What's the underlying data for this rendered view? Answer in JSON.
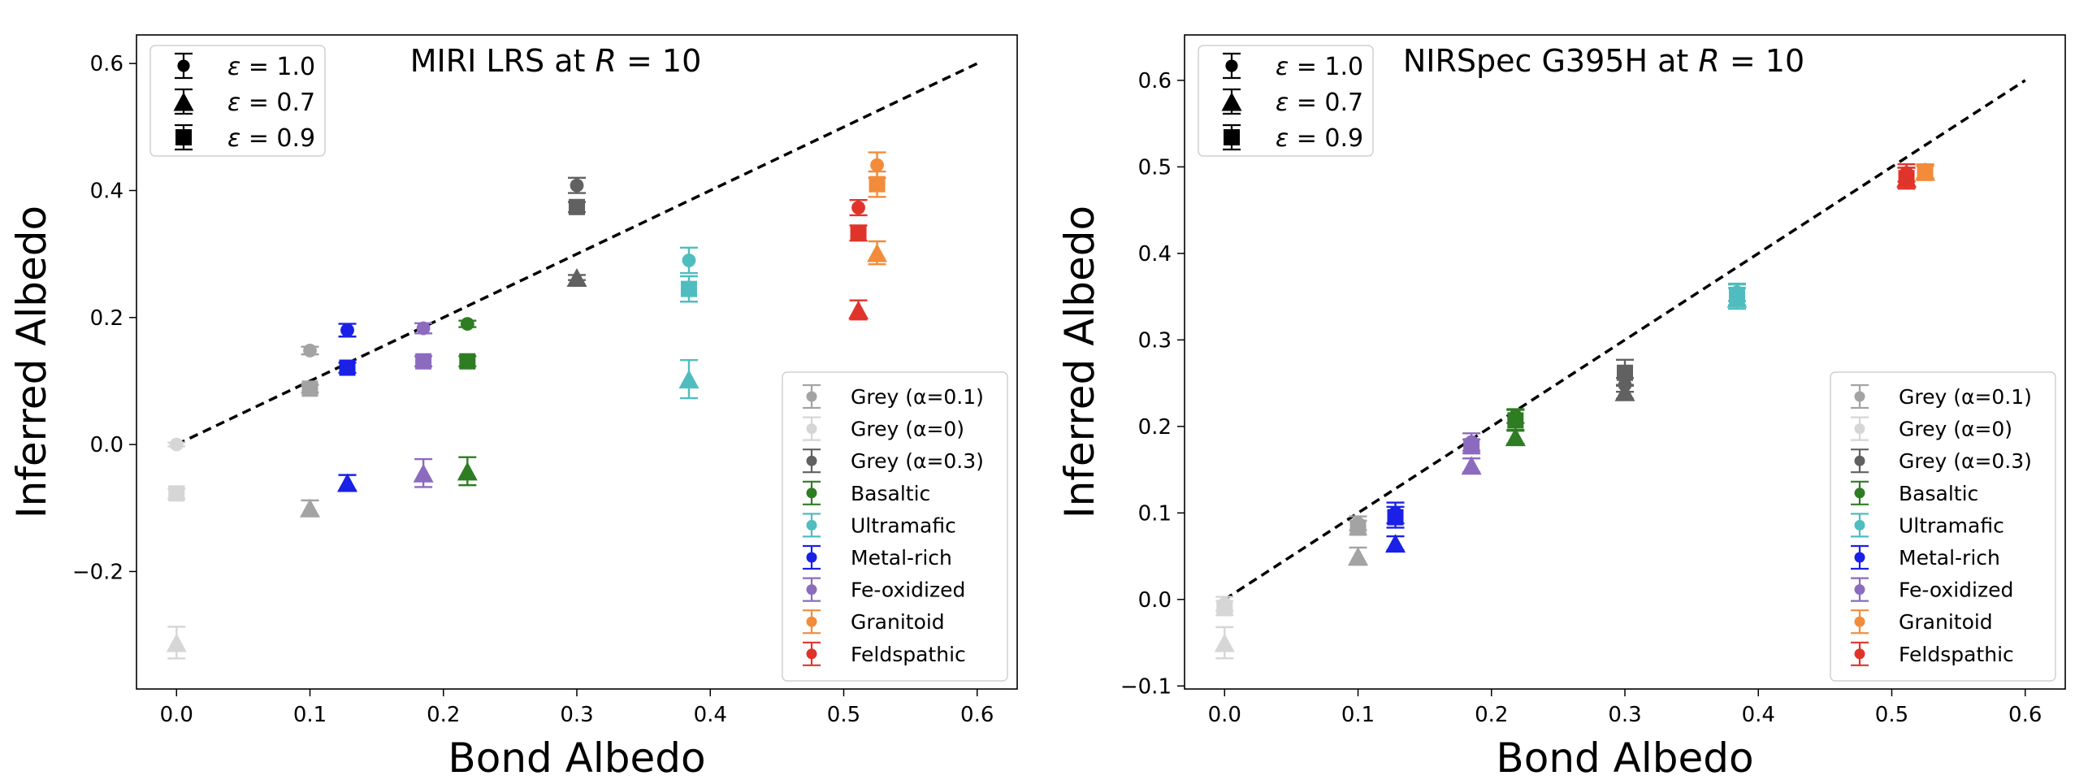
{
  "chart_data": [
    {
      "type": "scatter",
      "title_prefix": "MIRI LRS at ",
      "title_var": "R",
      "title_suffix": " = 10",
      "xlabel": "Bond Albedo",
      "ylabel": "Inferred Albedo",
      "xlim": [
        -0.03,
        0.63
      ],
      "ylim": [
        -0.385,
        0.645
      ],
      "xticks": [
        0.0,
        0.1,
        0.2,
        0.3,
        0.4,
        0.5,
        0.6
      ],
      "xtick_labels": [
        "0.0",
        "0.1",
        "0.2",
        "0.3",
        "0.4",
        "0.5",
        "0.6"
      ],
      "yticks": [
        -0.2,
        0.0,
        0.2,
        0.4,
        0.6
      ],
      "ytick_labels": [
        "−0.2",
        "0.0",
        "0.2",
        "0.4",
        "0.6"
      ],
      "reference_line": {
        "x": [
          0.0,
          0.6
        ],
        "y": [
          0.0,
          0.6
        ],
        "style": "dashed"
      },
      "marker_legend": [
        {
          "symbol": "ε",
          "text": " = 1.0",
          "marker": "circle"
        },
        {
          "symbol": "ε",
          "text": " = 0.7",
          "marker": "triangle"
        },
        {
          "symbol": "ε",
          "text": " = 0.9",
          "marker": "square"
        }
      ],
      "series": [
        {
          "name": "Grey (α=0.1)",
          "color": "#a3a3a3",
          "points": [
            {
              "marker": "circle",
              "x": 0.1,
              "y": 0.148,
              "err": 0.006
            },
            {
              "marker": "triangle",
              "x": 0.1,
              "y": -0.1,
              "err": 0.012
            },
            {
              "marker": "square",
              "x": 0.1,
              "y": 0.088,
              "err": 0.006
            }
          ]
        },
        {
          "name": "Grey (α=0)",
          "color": "#d6d6d6",
          "points": [
            {
              "marker": "circle",
              "x": 0.0,
              "y": 0.0,
              "err": 0.003
            },
            {
              "marker": "triangle",
              "x": 0.0,
              "y": -0.312,
              "err": 0.025
            },
            {
              "marker": "square",
              "x": 0.0,
              "y": -0.077,
              "err": 0.008
            }
          ]
        },
        {
          "name": "Grey (α=0.3)",
          "color": "#616161",
          "points": [
            {
              "marker": "circle",
              "x": 0.3,
              "y": 0.408,
              "err": 0.012
            },
            {
              "marker": "triangle",
              "x": 0.3,
              "y": 0.263,
              "err": 0.004
            },
            {
              "marker": "square",
              "x": 0.3,
              "y": 0.374,
              "err": 0.008
            }
          ]
        },
        {
          "name": "Basaltic",
          "color": "#2e7d23",
          "points": [
            {
              "marker": "circle",
              "x": 0.218,
              "y": 0.19,
              "err": 0.005
            },
            {
              "marker": "triangle",
              "x": 0.218,
              "y": -0.042,
              "err": 0.022
            },
            {
              "marker": "square",
              "x": 0.218,
              "y": 0.131,
              "err": 0.008
            }
          ]
        },
        {
          "name": "Ultramafic",
          "color": "#4fbdbf",
          "points": [
            {
              "marker": "circle",
              "x": 0.384,
              "y": 0.29,
              "err": 0.02
            },
            {
              "marker": "triangle",
              "x": 0.384,
              "y": 0.103,
              "err": 0.03
            },
            {
              "marker": "square",
              "x": 0.384,
              "y": 0.245,
              "err": 0.02
            }
          ]
        },
        {
          "name": "Metal-rich",
          "color": "#1a20e6",
          "points": [
            {
              "marker": "circle",
              "x": 0.128,
              "y": 0.18,
              "err": 0.01
            },
            {
              "marker": "triangle",
              "x": 0.128,
              "y": -0.06,
              "err": 0.012
            },
            {
              "marker": "square",
              "x": 0.128,
              "y": 0.121,
              "err": 0.008
            }
          ]
        },
        {
          "name": "Fe-oxidized",
          "color": "#8c6bbf",
          "points": [
            {
              "marker": "circle",
              "x": 0.185,
              "y": 0.183,
              "err": 0.008
            },
            {
              "marker": "triangle",
              "x": 0.185,
              "y": -0.045,
              "err": 0.022
            },
            {
              "marker": "square",
              "x": 0.185,
              "y": 0.131,
              "err": 0.008
            }
          ]
        },
        {
          "name": "Granitoid",
          "color": "#f28c3a",
          "points": [
            {
              "marker": "circle",
              "x": 0.525,
              "y": 0.44,
              "err": 0.02
            },
            {
              "marker": "triangle",
              "x": 0.525,
              "y": 0.302,
              "err": 0.018
            },
            {
              "marker": "square",
              "x": 0.525,
              "y": 0.41,
              "err": 0.02
            }
          ]
        },
        {
          "name": "Feldspathic",
          "color": "#e0342b",
          "points": [
            {
              "marker": "circle",
              "x": 0.511,
              "y": 0.373,
              "err": 0.012
            },
            {
              "marker": "triangle",
              "x": 0.511,
              "y": 0.212,
              "err": 0.015
            },
            {
              "marker": "square",
              "x": 0.511,
              "y": 0.333,
              "err": 0.012
            }
          ]
        }
      ]
    },
    {
      "type": "scatter",
      "title_prefix": "NIRSpec G395H at ",
      "title_var": "R",
      "title_suffix": " = 10",
      "xlabel": "Bond Albedo",
      "ylabel": "Inferred Albedo",
      "xlim": [
        -0.03,
        0.63
      ],
      "ylim": [
        -0.1035,
        0.6525
      ],
      "xticks": [
        0.0,
        0.1,
        0.2,
        0.3,
        0.4,
        0.5,
        0.6
      ],
      "xtick_labels": [
        "0.0",
        "0.1",
        "0.2",
        "0.3",
        "0.4",
        "0.5",
        "0.6"
      ],
      "yticks": [
        -0.1,
        0.0,
        0.1,
        0.2,
        0.3,
        0.4,
        0.5,
        0.6
      ],
      "ytick_labels": [
        "−0.1",
        "0.0",
        "0.1",
        "0.2",
        "0.3",
        "0.4",
        "0.5",
        "0.6"
      ],
      "reference_line": {
        "x": [
          0.0,
          0.6
        ],
        "y": [
          0.0,
          0.6
        ],
        "style": "dashed"
      },
      "marker_legend": [
        {
          "symbol": "ε",
          "text": " = 1.0",
          "marker": "circle"
        },
        {
          "symbol": "ε",
          "text": " = 0.7",
          "marker": "triangle"
        },
        {
          "symbol": "ε",
          "text": " = 0.9",
          "marker": "square"
        }
      ],
      "series": [
        {
          "name": "Grey (α=0.1)",
          "color": "#a3a3a3",
          "points": [
            {
              "marker": "circle",
              "x": 0.1,
              "y": 0.088,
              "err": 0.008
            },
            {
              "marker": "triangle",
              "x": 0.1,
              "y": 0.05,
              "err": 0.01
            },
            {
              "marker": "square",
              "x": 0.1,
              "y": 0.083,
              "err": 0.008
            }
          ]
        },
        {
          "name": "Grey (α=0)",
          "color": "#d6d6d6",
          "points": [
            {
              "marker": "circle",
              "x": 0.0,
              "y": -0.005,
              "err": 0.008
            },
            {
              "marker": "triangle",
              "x": 0.0,
              "y": -0.05,
              "err": 0.018
            },
            {
              "marker": "square",
              "x": 0.0,
              "y": -0.01,
              "err": 0.008
            }
          ]
        },
        {
          "name": "Grey (α=0.3)",
          "color": "#616161",
          "points": [
            {
              "marker": "circle",
              "x": 0.3,
              "y": 0.248,
              "err": 0.008
            },
            {
              "marker": "triangle",
              "x": 0.3,
              "y": 0.24,
              "err": 0.008
            },
            {
              "marker": "square",
              "x": 0.3,
              "y": 0.262,
              "err": 0.015
            }
          ]
        },
        {
          "name": "Basaltic",
          "color": "#2e7d23",
          "points": [
            {
              "marker": "circle",
              "x": 0.218,
              "y": 0.212,
              "err": 0.008
            },
            {
              "marker": "triangle",
              "x": 0.218,
              "y": 0.188,
              "err": 0.008
            },
            {
              "marker": "square",
              "x": 0.218,
              "y": 0.207,
              "err": 0.012
            }
          ]
        },
        {
          "name": "Ultramafic",
          "color": "#4fbdbf",
          "points": [
            {
              "marker": "circle",
              "x": 0.384,
              "y": 0.355,
              "err": 0.01
            },
            {
              "marker": "triangle",
              "x": 0.384,
              "y": 0.348,
              "err": 0.012
            },
            {
              "marker": "square",
              "x": 0.384,
              "y": 0.352,
              "err": 0.012
            }
          ]
        },
        {
          "name": "Metal-rich",
          "color": "#1a20e6",
          "points": [
            {
              "marker": "circle",
              "x": 0.128,
              "y": 0.1,
              "err": 0.012
            },
            {
              "marker": "triangle",
              "x": 0.128,
              "y": 0.065,
              "err": 0.008
            },
            {
              "marker": "square",
              "x": 0.128,
              "y": 0.095,
              "err": 0.012
            }
          ]
        },
        {
          "name": "Fe-oxidized",
          "color": "#8c6bbf",
          "points": [
            {
              "marker": "circle",
              "x": 0.185,
              "y": 0.182,
              "err": 0.01
            },
            {
              "marker": "triangle",
              "x": 0.185,
              "y": 0.155,
              "err": 0.008
            },
            {
              "marker": "square",
              "x": 0.185,
              "y": 0.177,
              "err": 0.008
            }
          ]
        },
        {
          "name": "Granitoid",
          "color": "#f28c3a",
          "points": [
            {
              "marker": "circle",
              "x": 0.525,
              "y": 0.495,
              "err": 0.008
            },
            {
              "marker": "triangle",
              "x": 0.525,
              "y": 0.495,
              "err": 0.008
            },
            {
              "marker": "square",
              "x": 0.525,
              "y": 0.493,
              "err": 0.008
            }
          ]
        },
        {
          "name": "Feldspathic",
          "color": "#e0342b",
          "points": [
            {
              "marker": "circle",
              "x": 0.511,
              "y": 0.493,
              "err": 0.01
            },
            {
              "marker": "triangle",
              "x": 0.511,
              "y": 0.487,
              "err": 0.012
            },
            {
              "marker": "square",
              "x": 0.511,
              "y": 0.487,
              "err": 0.012
            }
          ]
        }
      ]
    }
  ]
}
